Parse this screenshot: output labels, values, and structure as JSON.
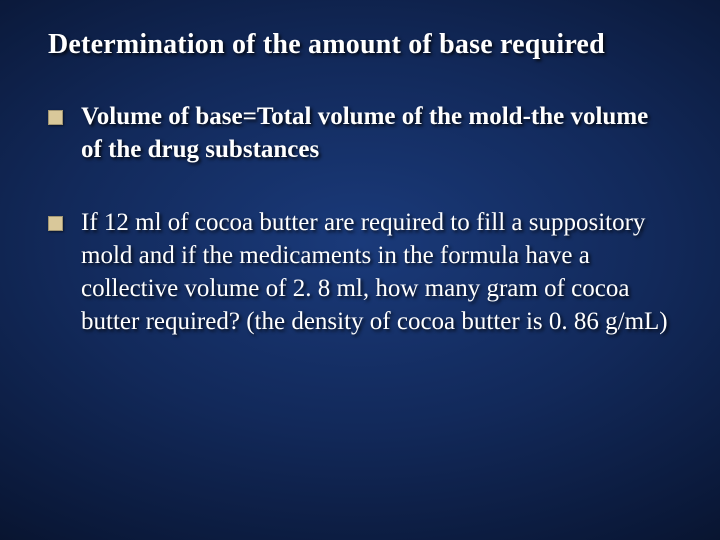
{
  "slide": {
    "background": {
      "gradient_center": "#1a3a7a",
      "gradient_mid": "#12295a",
      "gradient_outer": "#0a1838",
      "gradient_edge": "#030812"
    },
    "title": {
      "text": "Determination of the amount of base required",
      "fontsize": 28,
      "fontweight": "bold",
      "color": "#ffffff"
    },
    "bullets": [
      {
        "text": "Volume of base=Total volume of the mold-the volume of the drug substances",
        "bold": true
      },
      {
        "text": "If 12 ml of cocoa butter are required to fill a suppository mold and if the medicaments in the formula have a collective volume of 2. 8 ml, how many gram of cocoa butter required? (the density of cocoa butter is 0. 86 g/mL)",
        "bold": false
      }
    ],
    "bullet_style": {
      "square_color": "#d9c89a",
      "square_size": 13,
      "text_fontsize": 25,
      "text_color": "#ffffff"
    }
  }
}
